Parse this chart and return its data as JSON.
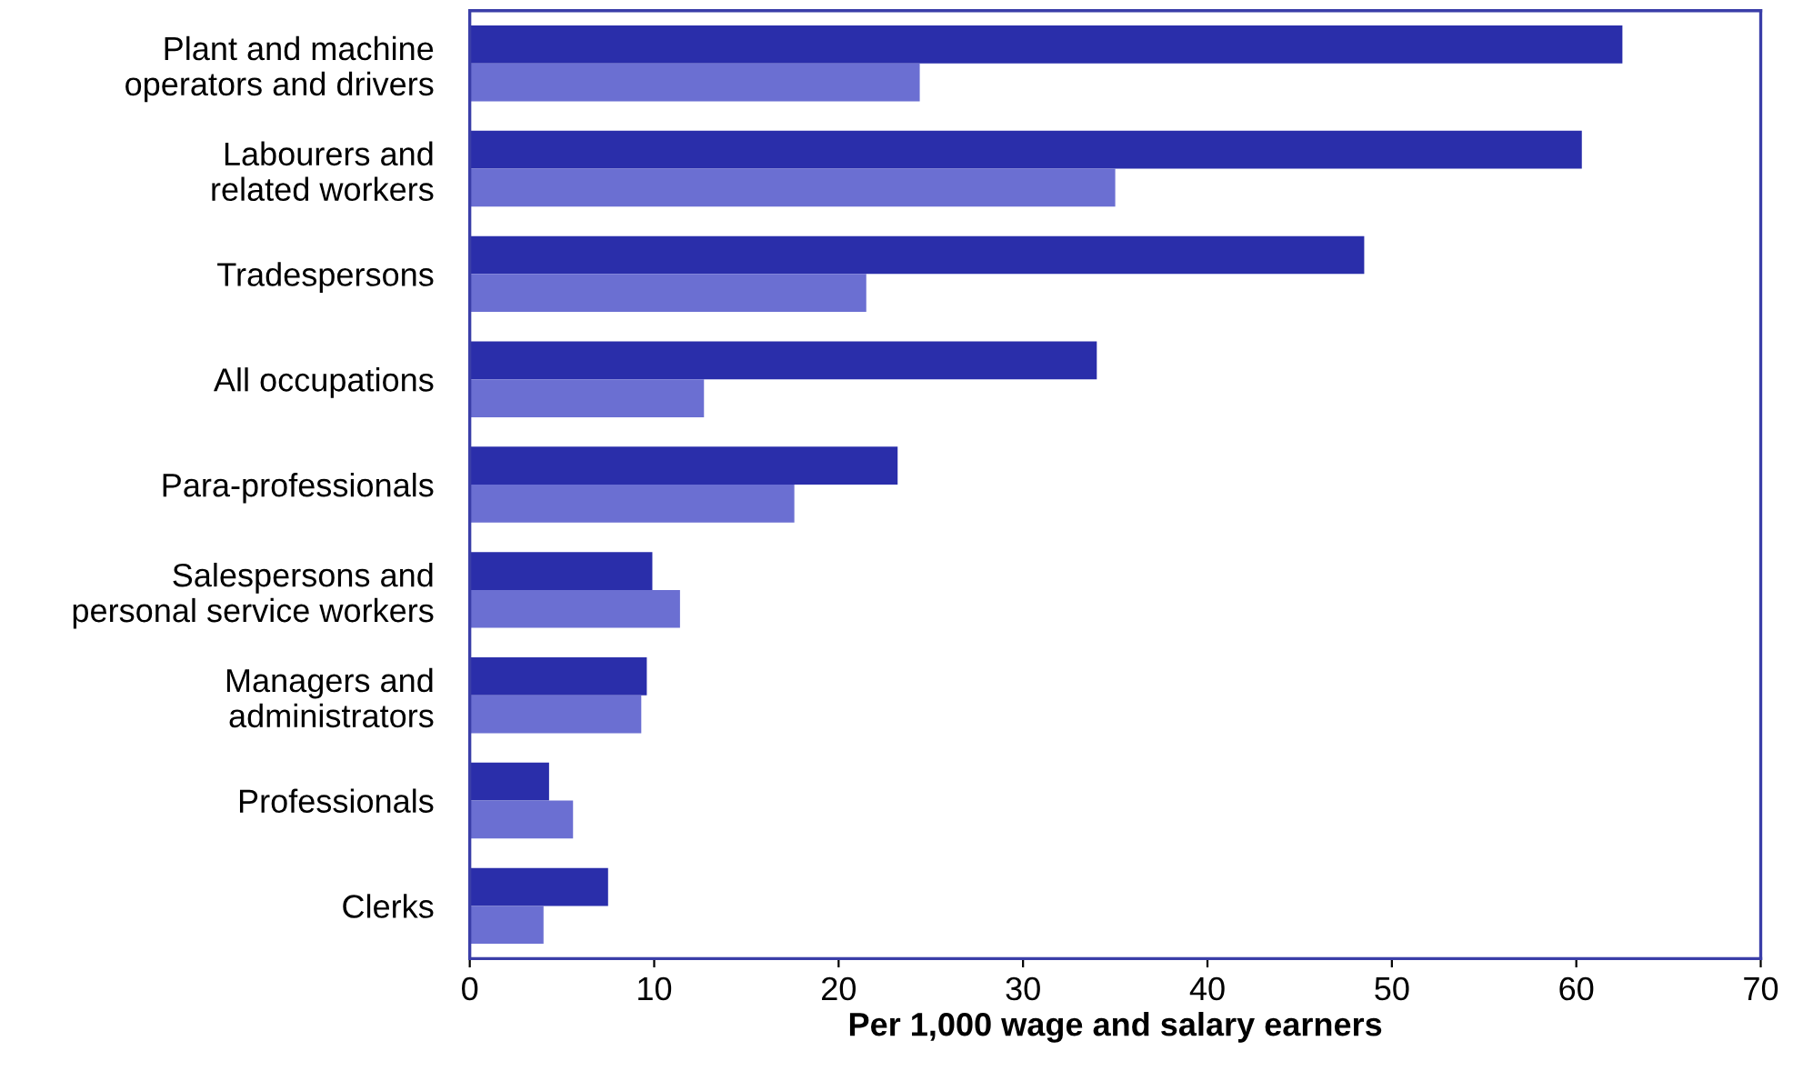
{
  "chart_data": {
    "type": "bar",
    "orientation": "horizontal",
    "xlabel": "Per 1,000 wage and salary earners",
    "categories": [
      "Plant and machine\noperators and drivers",
      "Labourers and\nrelated workers",
      "Tradespersons",
      "All occupations",
      "Para-professionals",
      "Salespersons and\npersonal service workers",
      "Managers and\nadministrators",
      "Professionals",
      "Clerks"
    ],
    "series": [
      {
        "color": "#2a2eaa",
        "values": [
          62.5,
          60.3,
          48.5,
          34.0,
          23.2,
          9.9,
          9.6,
          4.3,
          7.5
        ]
      },
      {
        "color": "#6b6fd2",
        "values": [
          24.4,
          35.0,
          21.5,
          12.7,
          17.6,
          11.4,
          9.3,
          5.6,
          4.0
        ]
      }
    ],
    "xlim": [
      0,
      70
    ],
    "xticks": [
      0,
      10,
      20,
      30,
      40,
      50,
      60,
      70
    ],
    "grid": false,
    "legend": false
  }
}
